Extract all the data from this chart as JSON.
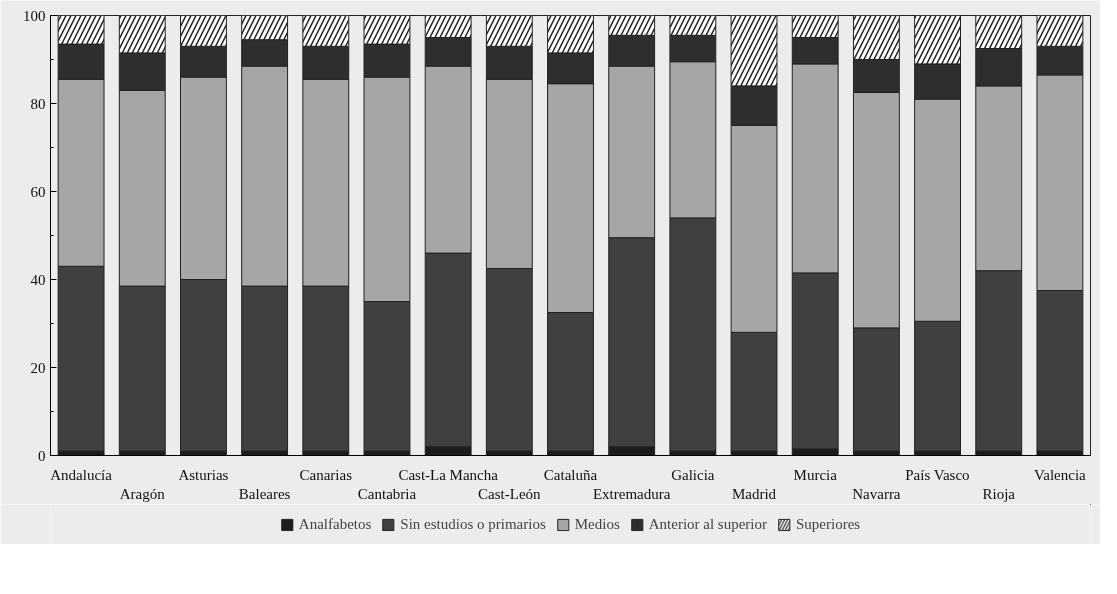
{
  "chart_data": {
    "type": "bar",
    "stacked": true,
    "categories": [
      "Andalucía",
      "Aragón",
      "Asturias",
      "Baleares",
      "Canarias",
      "Cantabria",
      "Cast-La Mancha",
      "Cast-León",
      "Cataluña",
      "Extremadura",
      "Galicia",
      "Madrid",
      "Murcia",
      "Navarra",
      "País Vasco",
      "Rioja",
      "Valencia"
    ],
    "series": [
      {
        "name": "Analfabetos",
        "color": "#1c1c1c",
        "values": [
          1,
          1,
          1,
          1,
          1,
          1,
          2,
          1,
          1,
          2,
          1,
          1,
          1.5,
          1,
          1,
          1,
          1
        ]
      },
      {
        "name": "Sin estudios o primarios",
        "color": "#404040",
        "values": [
          42,
          37.5,
          39,
          37.5,
          37.5,
          34,
          44,
          41.5,
          31.5,
          47.5,
          53,
          27,
          40,
          28,
          29.5,
          41,
          36.5
        ]
      },
      {
        "name": "Medios",
        "color": "#a6a6a6",
        "values": [
          42.5,
          44.5,
          46,
          50,
          47,
          51,
          42.5,
          43,
          52,
          39,
          35.5,
          47,
          47.5,
          53.5,
          50.5,
          42,
          49
        ]
      },
      {
        "name": "Anterior al superior",
        "color": "#2e2e2e",
        "values": [
          8,
          8.5,
          7,
          6,
          7.5,
          7.5,
          6.5,
          7.5,
          7,
          7,
          6,
          9,
          6,
          7.5,
          8,
          8.5,
          6.5
        ]
      },
      {
        "name": "Superiores",
        "color": "#ffffff",
        "values": [
          6.5,
          8.5,
          7,
          5.5,
          7,
          6.5,
          5,
          7,
          8.5,
          4.5,
          4.5,
          16,
          5,
          10,
          11,
          7.5,
          7
        ]
      }
    ],
    "ylim": [
      0,
      100
    ],
    "yticks": [
      0,
      20,
      40,
      60,
      80,
      100
    ],
    "grid": false,
    "legend": "bottom"
  }
}
